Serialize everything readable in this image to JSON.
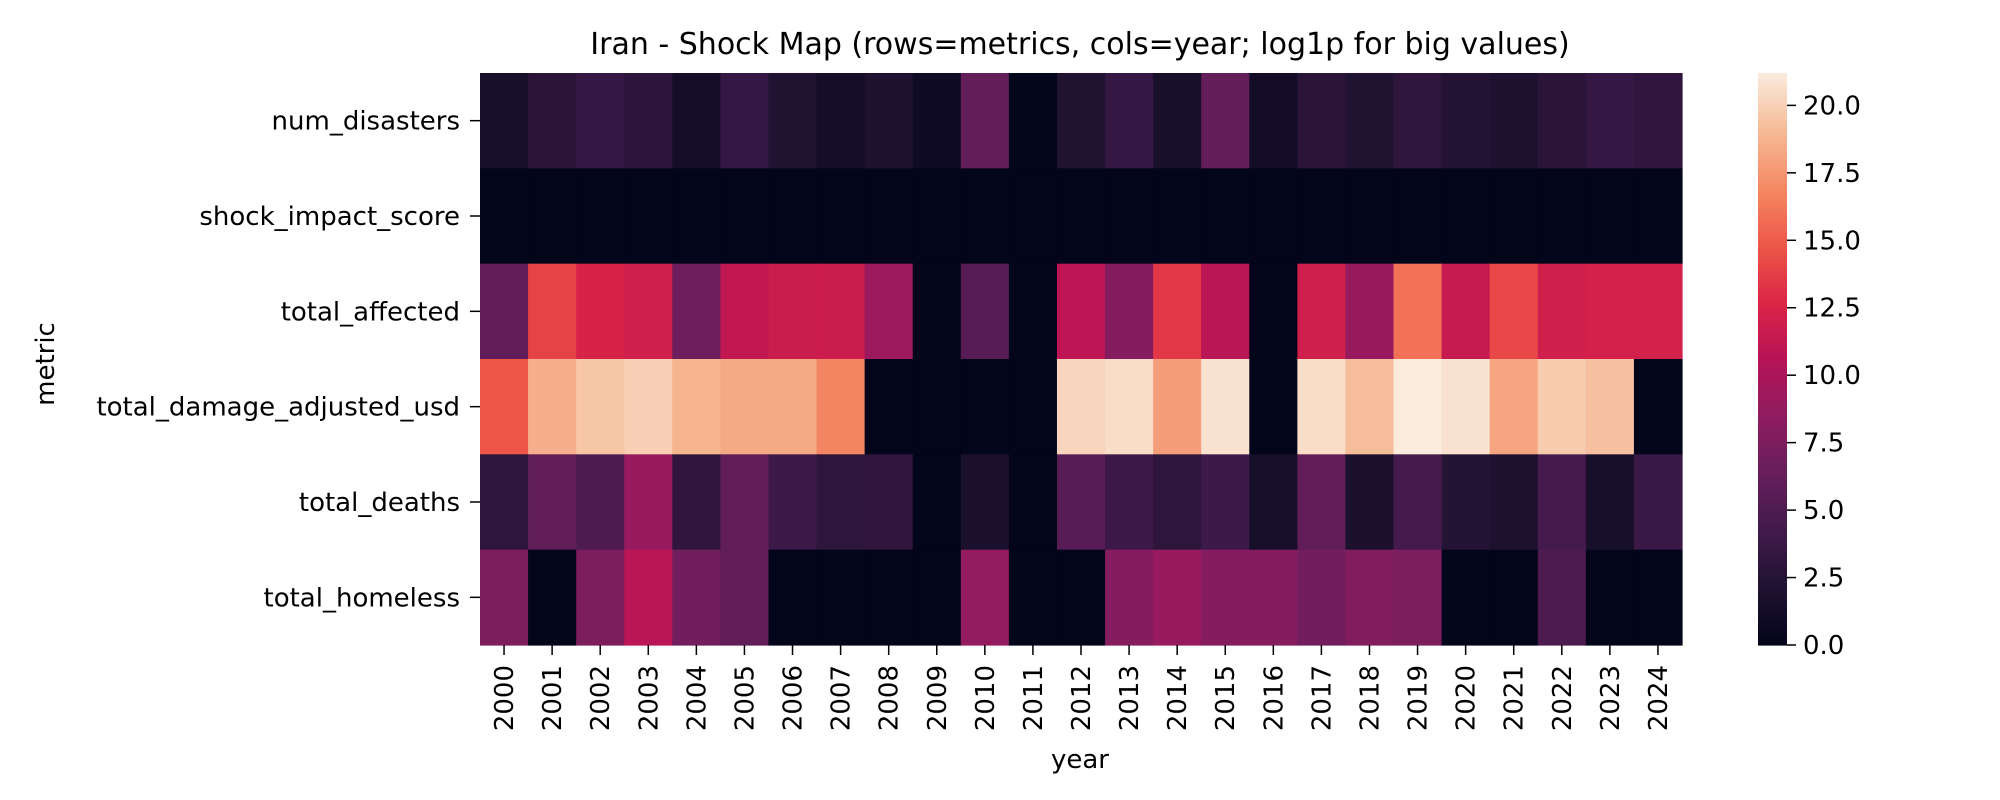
{
  "chart_data": {
    "type": "heatmap",
    "title": "Iran - Shock Map (rows=metrics, cols=year; log1p for big values)",
    "xlabel": "year",
    "ylabel": "metric",
    "x": [
      "2000",
      "2001",
      "2002",
      "2003",
      "2004",
      "2005",
      "2006",
      "2007",
      "2008",
      "2009",
      "2010",
      "2011",
      "2012",
      "2013",
      "2014",
      "2015",
      "2016",
      "2017",
      "2018",
      "2019",
      "2020",
      "2021",
      "2022",
      "2023",
      "2024"
    ],
    "rows": [
      "num_disasters",
      "shock_impact_score",
      "total_affected",
      "total_damage_adjusted_usd",
      "total_deaths",
      "total_homeless"
    ],
    "values": [
      [
        1.6,
        2.8,
        3.5,
        2.9,
        1.4,
        3.5,
        2.2,
        1.4,
        2.0,
        1.0,
        6.2,
        0.0,
        2.2,
        3.5,
        1.6,
        6.2,
        1.2,
        2.8,
        2.2,
        3.0,
        2.5,
        2.0,
        2.8,
        3.5,
        3.2
      ],
      [
        0.0,
        0.0,
        0.0,
        0.0,
        0.0,
        0.0,
        0.0,
        0.0,
        0.0,
        0.0,
        0.0,
        0.0,
        0.0,
        0.0,
        0.0,
        0.0,
        0.0,
        0.0,
        0.0,
        0.0,
        0.0,
        0.0,
        0.0,
        0.0,
        0.0
      ],
      [
        6.0,
        14.0,
        12.5,
        12.0,
        6.8,
        11.2,
        11.8,
        11.8,
        9.2,
        0.0,
        5.5,
        0.0,
        11.0,
        8.0,
        13.5,
        10.8,
        0.0,
        12.0,
        9.0,
        16.0,
        11.5,
        14.2,
        12.0,
        12.2,
        12.2
      ],
      [
        14.8,
        18.6,
        19.6,
        20.0,
        18.8,
        18.4,
        18.4,
        16.8,
        0.0,
        0.0,
        0.0,
        0.0,
        20.2,
        20.6,
        17.8,
        20.8,
        0.0,
        20.6,
        19.2,
        21.2,
        20.8,
        18.2,
        19.8,
        19.4,
        0.0
      ],
      [
        3.0,
        6.0,
        5.0,
        9.0,
        3.2,
        6.0,
        4.0,
        3.0,
        3.2,
        0.0,
        1.8,
        0.0,
        5.5,
        4.0,
        3.0,
        4.0,
        1.5,
        6.0,
        1.8,
        4.5,
        2.5,
        2.0,
        4.5,
        1.6,
        3.8
      ],
      [
        7.5,
        0.0,
        7.5,
        10.8,
        7.0,
        6.0,
        0.0,
        0.0,
        0.0,
        0.0,
        8.8,
        0.0,
        0.0,
        8.0,
        9.0,
        8.0,
        8.0,
        7.0,
        7.8,
        7.5,
        0.0,
        0.0,
        5.0,
        0.0,
        0.0
      ]
    ],
    "vmin": 0.0,
    "vmax": 21.2,
    "colormap": "rocket",
    "colorbar_ticks": [
      "0.0",
      "2.5",
      "5.0",
      "7.5",
      "10.0",
      "12.5",
      "15.0",
      "17.5",
      "20.0"
    ]
  }
}
